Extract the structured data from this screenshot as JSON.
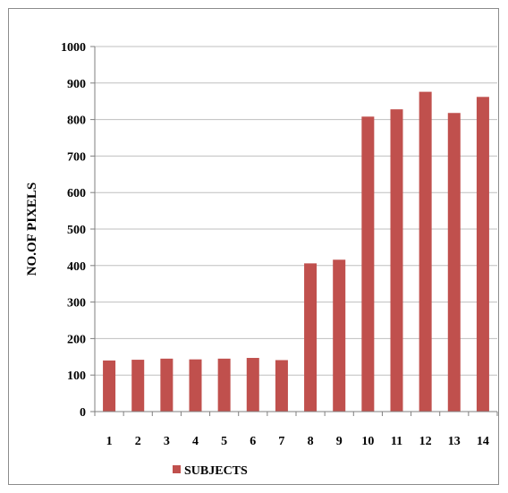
{
  "chart_data": {
    "type": "bar",
    "categories": [
      "1",
      "2",
      "3",
      "4",
      "5",
      "6",
      "7",
      "8",
      "9",
      "10",
      "11",
      "12",
      "13",
      "14"
    ],
    "series": [
      {
        "name": "SUBJECTS",
        "values": [
          140,
          142,
          145,
          143,
          145,
          147,
          141,
          406,
          416,
          808,
          828,
          876,
          818,
          862
        ]
      }
    ],
    "xlabel": "",
    "ylabel": "NO.OF PIXELS",
    "ylim": [
      0,
      1000
    ],
    "yticks": [
      0,
      100,
      200,
      300,
      400,
      500,
      600,
      700,
      800,
      900,
      1000
    ],
    "grid": "horizontal",
    "legend": "bottom",
    "colors": {
      "bar": "#c0504d",
      "grid": "#bfbfbf",
      "axis": "#7f7f7f"
    }
  }
}
